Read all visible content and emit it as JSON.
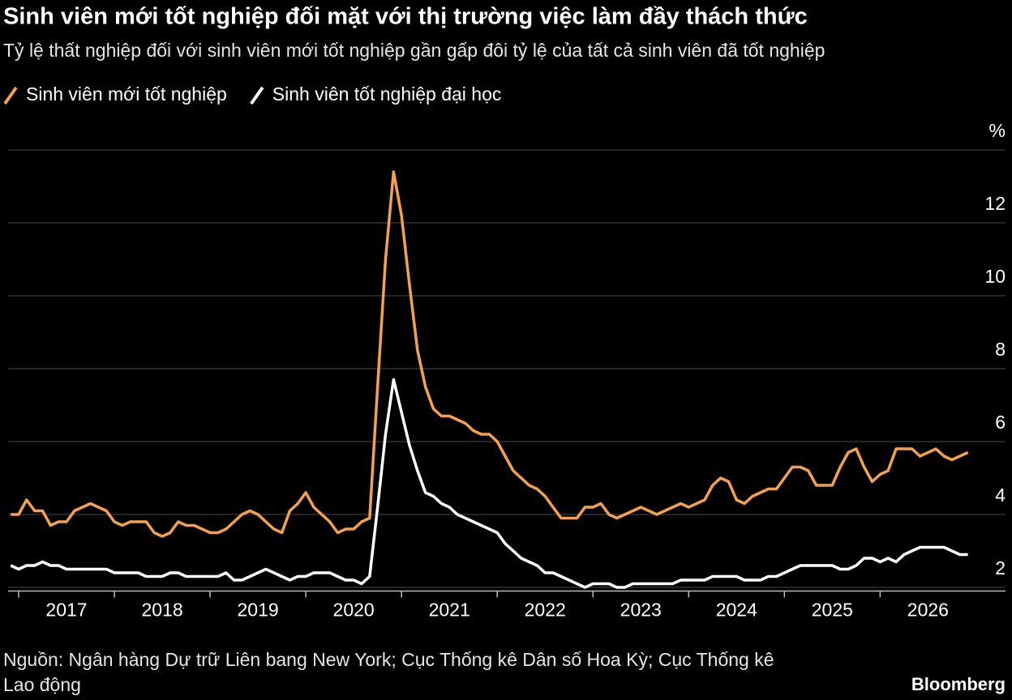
{
  "chart_data": {
    "type": "line",
    "title": "Sinh viên mới tốt nghiệp đối mặt với thị trường việc làm đầy thách thức",
    "subtitle": "Tỷ lệ thất nghiệp đối với sinh viên mới tốt nghiệp gần gấp đôi tỷ lệ của tất cả sinh viên đã tốt nghiệp",
    "source": "Nguồn: Ngân hàng Dự trữ Liên bang New York; Cục Thống kê Dân số Hoa Kỳ; Cục Thống kê Lao động",
    "brand": "Bloomberg",
    "x": [
      2016.917,
      2017,
      2017.083,
      2017.167,
      2017.25,
      2017.333,
      2017.417,
      2017.5,
      2017.583,
      2017.667,
      2017.75,
      2017.833,
      2017.917,
      2018,
      2018.083,
      2018.167,
      2018.25,
      2018.333,
      2018.417,
      2018.5,
      2018.583,
      2018.667,
      2018.75,
      2018.833,
      2018.917,
      2019,
      2019.083,
      2019.167,
      2019.25,
      2019.333,
      2019.417,
      2019.5,
      2019.583,
      2019.667,
      2019.75,
      2019.833,
      2019.917,
      2020,
      2020.083,
      2020.167,
      2020.25,
      2020.333,
      2020.417,
      2020.5,
      2020.583,
      2020.667,
      2020.75,
      2020.833,
      2020.917,
      2021,
      2021.083,
      2021.167,
      2021.25,
      2021.333,
      2021.417,
      2021.5,
      2021.583,
      2021.667,
      2021.75,
      2021.833,
      2021.917,
      2022,
      2022.083,
      2022.167,
      2022.25,
      2022.333,
      2022.417,
      2022.5,
      2022.583,
      2022.667,
      2022.75,
      2022.833,
      2022.917,
      2023,
      2023.083,
      2023.167,
      2023.25,
      2023.333,
      2023.417,
      2023.5,
      2023.583,
      2023.667,
      2023.75,
      2023.833,
      2023.917,
      2024,
      2024.083,
      2024.167,
      2024.25,
      2024.333,
      2024.417,
      2024.5,
      2024.583,
      2024.667,
      2024.75,
      2024.833,
      2024.917,
      2025,
      2025.083,
      2025.167,
      2025.25,
      2025.333,
      2025.417,
      2025.5,
      2025.583,
      2025.667,
      2025.75,
      2025.833,
      2025.917,
      2026,
      2026.083,
      2026.167,
      2026.25,
      2026.333,
      2026.417,
      2026.5,
      2026.583,
      2026.667,
      2026.75,
      2026.833,
      2026.917
    ],
    "series": [
      {
        "name": "Sinh viên mới tốt nghiệp",
        "color": "#f2a24f",
        "values": [
          4.0,
          4.0,
          4.4,
          4.1,
          4.1,
          3.7,
          3.8,
          3.8,
          4.1,
          4.2,
          4.3,
          4.2,
          4.1,
          3.8,
          3.7,
          3.8,
          3.8,
          3.8,
          3.5,
          3.4,
          3.5,
          3.8,
          3.7,
          3.7,
          3.6,
          3.5,
          3.5,
          3.6,
          3.8,
          4.0,
          4.1,
          4.0,
          3.8,
          3.6,
          3.5,
          4.1,
          4.3,
          4.6,
          4.2,
          4.0,
          3.8,
          3.5,
          3.6,
          3.6,
          3.8,
          3.9,
          7.5,
          11.0,
          13.4,
          12.2,
          10.3,
          8.5,
          7.5,
          6.9,
          6.7,
          6.7,
          6.6,
          6.5,
          6.3,
          6.2,
          6.2,
          6.0,
          5.6,
          5.2,
          5.0,
          4.8,
          4.7,
          4.5,
          4.2,
          3.9,
          3.9,
          3.9,
          4.2,
          4.2,
          4.3,
          4.0,
          3.9,
          4.0,
          4.1,
          4.2,
          4.1,
          4.0,
          4.1,
          4.2,
          4.3,
          4.2,
          4.3,
          4.4,
          4.8,
          5.0,
          4.9,
          4.4,
          4.3,
          4.5,
          4.6,
          4.7,
          4.7,
          5.0,
          5.3,
          5.3,
          5.2,
          4.8,
          4.8,
          4.8,
          5.3,
          5.7,
          5.8,
          5.3,
          4.9,
          5.1,
          5.2,
          5.8,
          5.8,
          5.8,
          5.6,
          5.7,
          5.8,
          5.6,
          5.5,
          5.6,
          5.7
        ]
      },
      {
        "name": "Sinh viên tốt nghiệp đại học",
        "color": "#ffffff",
        "values": [
          2.6,
          2.5,
          2.6,
          2.6,
          2.7,
          2.6,
          2.6,
          2.5,
          2.5,
          2.5,
          2.5,
          2.5,
          2.5,
          2.4,
          2.4,
          2.4,
          2.4,
          2.3,
          2.3,
          2.3,
          2.4,
          2.4,
          2.3,
          2.3,
          2.3,
          2.3,
          2.3,
          2.4,
          2.2,
          2.2,
          2.3,
          2.4,
          2.5,
          2.4,
          2.3,
          2.2,
          2.3,
          2.3,
          2.4,
          2.4,
          2.4,
          2.3,
          2.2,
          2.2,
          2.1,
          2.3,
          4.2,
          6.2,
          7.7,
          6.8,
          5.9,
          5.2,
          4.6,
          4.5,
          4.3,
          4.2,
          4.0,
          3.9,
          3.8,
          3.7,
          3.6,
          3.5,
          3.2,
          3.0,
          2.8,
          2.7,
          2.6,
          2.4,
          2.4,
          2.3,
          2.2,
          2.1,
          2.0,
          2.1,
          2.1,
          2.1,
          2.0,
          2.0,
          2.1,
          2.1,
          2.1,
          2.1,
          2.1,
          2.1,
          2.2,
          2.2,
          2.2,
          2.2,
          2.3,
          2.3,
          2.3,
          2.3,
          2.2,
          2.2,
          2.2,
          2.3,
          2.3,
          2.4,
          2.5,
          2.6,
          2.6,
          2.6,
          2.6,
          2.6,
          2.5,
          2.5,
          2.6,
          2.8,
          2.8,
          2.7,
          2.8,
          2.7,
          2.9,
          3.0,
          3.1,
          3.1,
          3.1,
          3.1,
          3.0,
          2.9,
          2.9
        ]
      }
    ],
    "xlim": [
      2016.89,
      2027.31
    ],
    "xticks": [
      2017,
      2018,
      2019,
      2020,
      2021,
      2022,
      2023,
      2024,
      2025,
      2026
    ],
    "ylim": [
      1.9,
      14
    ],
    "yticks": [
      2,
      4,
      6,
      8,
      10,
      12,
      {
        "value": 14,
        "label": "%"
      }
    ],
    "grid": true
  }
}
